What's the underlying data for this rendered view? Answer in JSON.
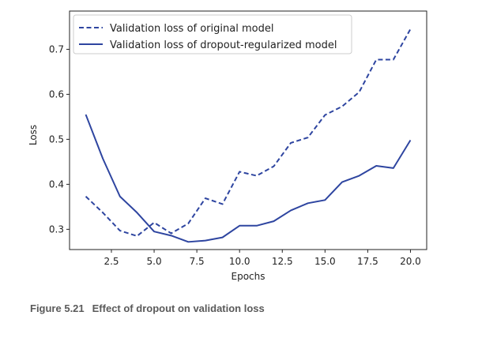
{
  "chart_data": {
    "type": "line",
    "title": "",
    "xlabel": "Epochs",
    "ylabel": "Loss",
    "xlim": [
      0.05,
      20.95
    ],
    "ylim": [
      0.255,
      0.785
    ],
    "xticks": [
      2.5,
      5.0,
      7.5,
      10.0,
      12.5,
      15.0,
      17.5,
      20.0
    ],
    "xtick_labels": [
      "2.5",
      "5.0",
      "7.5",
      "10.0",
      "12.5",
      "15.0",
      "17.5",
      "20.0"
    ],
    "yticks": [
      0.3,
      0.4,
      0.5,
      0.6,
      0.7
    ],
    "ytick_labels": [
      "0.3",
      "0.4",
      "0.5",
      "0.6",
      "0.7"
    ],
    "grid": false,
    "legend_position": "top-left",
    "x": [
      1,
      2,
      3,
      4,
      5,
      6,
      7,
      8,
      9,
      10,
      11,
      12,
      13,
      14,
      15,
      16,
      17,
      18,
      19,
      20
    ],
    "series": [
      {
        "name": "Validation loss of original model",
        "style": "dashed",
        "color": "#2e45a0",
        "values": [
          0.373,
          0.337,
          0.297,
          0.285,
          0.315,
          0.291,
          0.313,
          0.369,
          0.356,
          0.428,
          0.419,
          0.44,
          0.492,
          0.504,
          0.554,
          0.573,
          0.605,
          0.677,
          0.677,
          0.745
        ]
      },
      {
        "name": "Validation loss of dropout-regularized model",
        "style": "solid",
        "color": "#2e45a0",
        "values": [
          0.555,
          0.457,
          0.373,
          0.337,
          0.295,
          0.286,
          0.272,
          0.275,
          0.282,
          0.308,
          0.308,
          0.318,
          0.342,
          0.358,
          0.365,
          0.405,
          0.419,
          0.441,
          0.436,
          0.498
        ]
      }
    ]
  },
  "caption": {
    "figure_number": "Figure 5.21",
    "text": "Effect of dropout on validation loss"
  }
}
